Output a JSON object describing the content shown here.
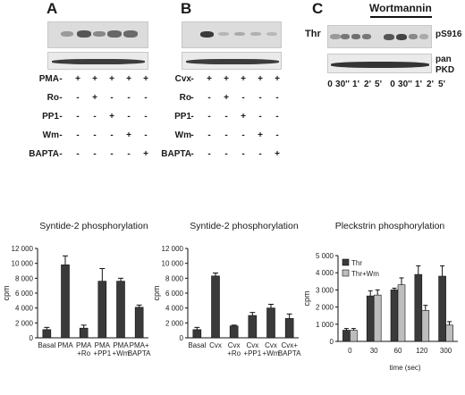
{
  "panels": {
    "A": {
      "letter": "A",
      "rows": [
        {
          "label": "PMA",
          "signs": [
            "-",
            "+",
            "+",
            "+",
            "+",
            "+"
          ]
        },
        {
          "label": "Ro",
          "signs": [
            "-",
            "-",
            "+",
            "-",
            "-",
            "-"
          ]
        },
        {
          "label": "PP1",
          "signs": [
            "-",
            "-",
            "-",
            "+",
            "-",
            "-"
          ]
        },
        {
          "label": "Wm",
          "signs": [
            "-",
            "-",
            "-",
            "-",
            "+",
            "-"
          ]
        },
        {
          "label": "BAPTA",
          "signs": [
            "-",
            "-",
            "-",
            "-",
            "-",
            "+"
          ]
        }
      ]
    },
    "B": {
      "letter": "B",
      "rows": [
        {
          "label": "Cvx",
          "signs": [
            "-",
            "+",
            "+",
            "+",
            "+",
            "+"
          ]
        },
        {
          "label": "Ro",
          "signs": [
            "-",
            "-",
            "+",
            "-",
            "-",
            "-"
          ]
        },
        {
          "label": "PP1",
          "signs": [
            "-",
            "-",
            "-",
            "+",
            "-",
            "-"
          ]
        },
        {
          "label": "Wm",
          "signs": [
            "-",
            "-",
            "-",
            "-",
            "+",
            "-"
          ]
        },
        {
          "label": "BAPTA",
          "signs": [
            "-",
            "-",
            "-",
            "-",
            "-",
            "+"
          ]
        }
      ]
    },
    "C": {
      "letter": "C",
      "wortmannin": "Wortmannin",
      "thr": "Thr",
      "ps916": "pS916",
      "pan": "pan",
      "pkd": "PKD",
      "times": [
        "0",
        "30''",
        "1'",
        "2'",
        "5'",
        "0",
        "30''",
        "1'",
        "2'",
        "5'"
      ]
    }
  },
  "chart_data": [
    {
      "type": "bar",
      "title": "Syntide-2 phosphorylation",
      "ylabel": "cpm",
      "ylim": [
        0,
        12000
      ],
      "yticks": [
        "0",
        "2 000",
        "4 000",
        "6 000",
        "8 000",
        "10 000",
        "12 000"
      ],
      "categories": [
        "Basal",
        "PMA",
        "PMA\n+Ro",
        "PMA\n+PP1",
        "PMA\n+Wm",
        "PMA+\nBAPTA"
      ],
      "values": [
        1100,
        9800,
        1300,
        7600,
        7600,
        4100
      ],
      "errors": [
        300,
        1200,
        400,
        1700,
        400,
        300
      ]
    },
    {
      "type": "bar",
      "title": "Syntide-2 phosphorylation",
      "ylabel": "cpm",
      "ylim": [
        0,
        12000
      ],
      "yticks": [
        "0",
        "2 000",
        "4 000",
        "6 000",
        "8 000",
        "10 000",
        "12 000"
      ],
      "categories": [
        "Basal",
        "Cvx",
        "Cvx\n+Ro",
        "Cvx\n+PP1",
        "Cvx\n+Wm",
        "Cvx+\nBAPTA"
      ],
      "values": [
        1100,
        8300,
        1600,
        3000,
        4000,
        2600
      ],
      "errors": [
        300,
        400,
        100,
        400,
        500,
        600
      ]
    },
    {
      "type": "bar",
      "title": "Pleckstrin phosphorylation",
      "xlabel": "time (sec)",
      "ylabel": "cpm",
      "ylim": [
        0,
        5000
      ],
      "yticks": [
        "0",
        "1 000",
        "2 000",
        "3 000",
        "4 000",
        "5 000"
      ],
      "categories": [
        "0",
        "30",
        "60",
        "120",
        "300"
      ],
      "series": [
        {
          "name": "Thr",
          "color": "#3a3a3a",
          "values": [
            650,
            2650,
            3000,
            3900,
            3800
          ],
          "errors": [
            100,
            300,
            100,
            500,
            600
          ]
        },
        {
          "name": "Thr+Wm",
          "color": "#bdbdbd",
          "values": [
            650,
            2700,
            3300,
            1800,
            950
          ],
          "errors": [
            100,
            300,
            400,
            300,
            200
          ]
        }
      ],
      "legend": "top-left"
    }
  ]
}
